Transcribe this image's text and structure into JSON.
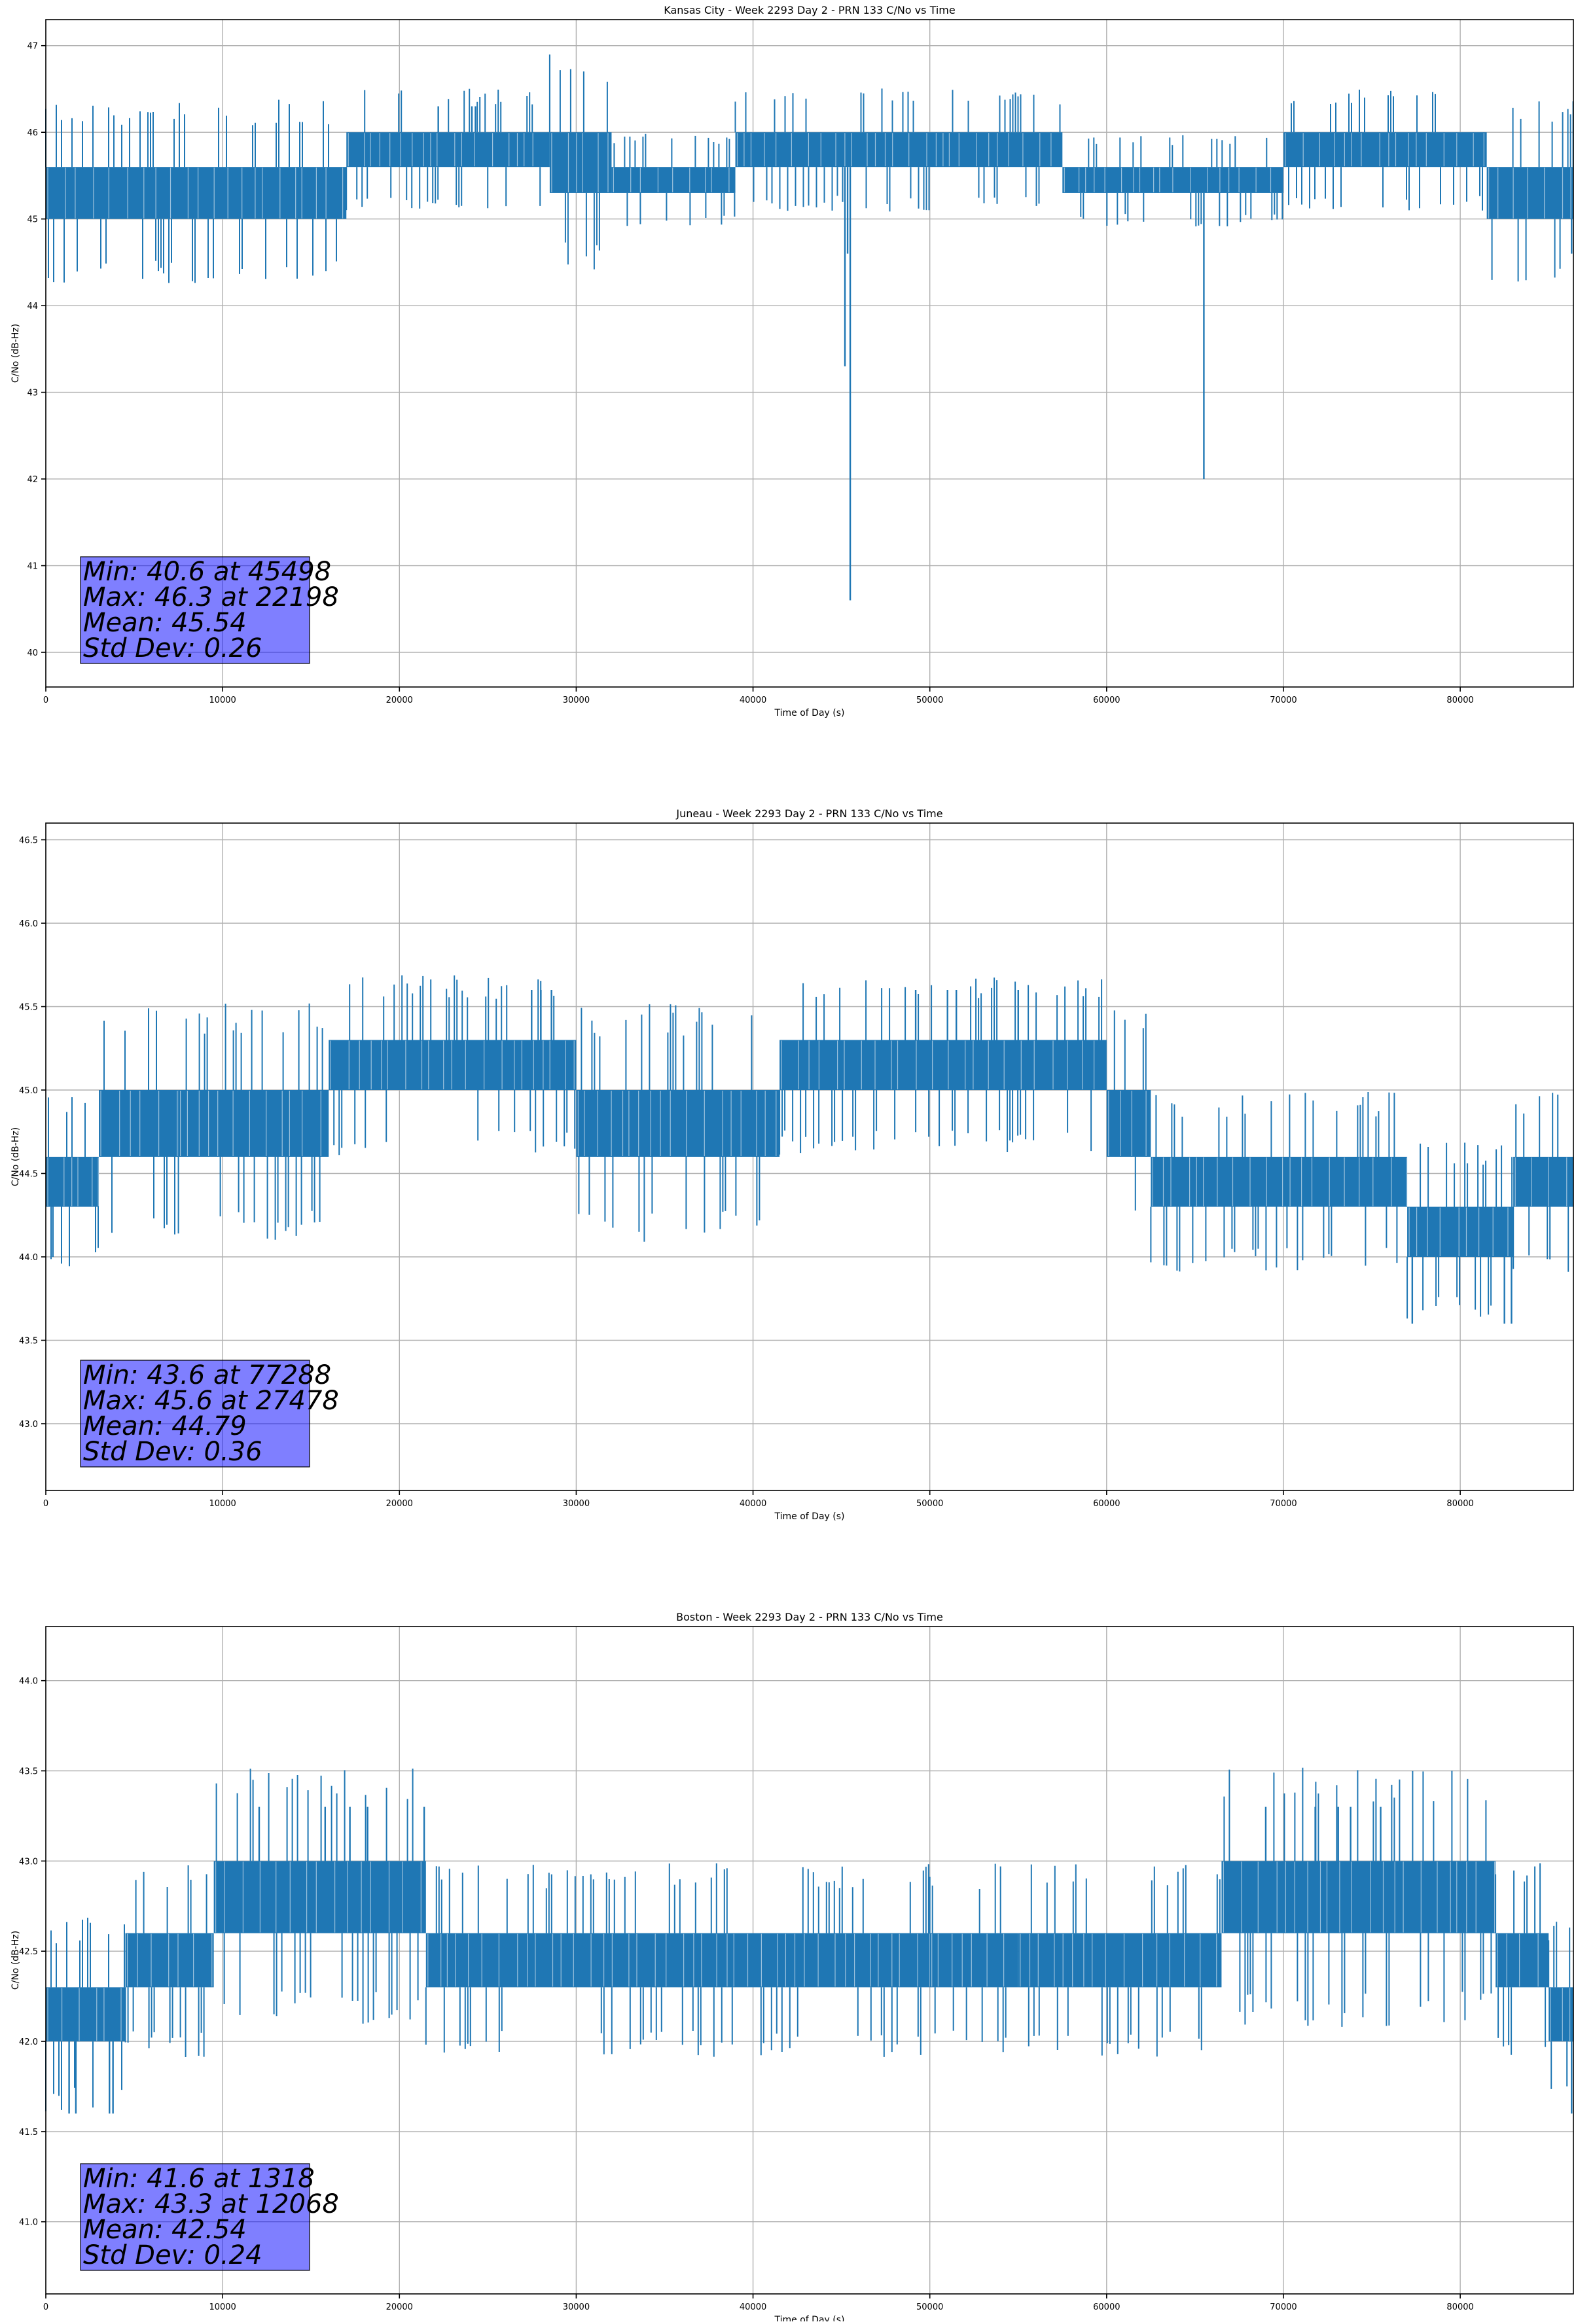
{
  "chart_data": [
    {
      "type": "line",
      "title": "Kansas City - Week 2293 Day 2 - PRN 133 C/No vs Time",
      "xlabel": "Time of Day (s)",
      "ylabel": "C/No (dB-Hz)",
      "xlim": [
        0,
        86400
      ],
      "ylim": [
        39.6,
        47.3
      ],
      "xticks": [
        0,
        10000,
        20000,
        30000,
        40000,
        50000,
        60000,
        70000,
        80000
      ],
      "xtick_labels": [
        "0",
        "10000",
        "20000",
        "30000",
        "40000",
        "50000",
        "60000",
        "70000",
        "80000"
      ],
      "yticks": [
        40,
        41,
        42,
        43,
        44,
        45,
        46,
        47
      ],
      "ytick_labels": [
        "40",
        "41",
        "42",
        "43",
        "44",
        "45",
        "46",
        "47"
      ],
      "grid": true,
      "series_color": "#1f77b4",
      "band_segments": [
        {
          "x0": 0,
          "x1": 17000,
          "low": 45.0,
          "high": 45.6
        },
        {
          "x0": 17000,
          "x1": 28500,
          "low": 45.6,
          "high": 46.0
        },
        {
          "x0": 28500,
          "x1": 32000,
          "low": 45.3,
          "high": 46.0
        },
        {
          "x0": 32000,
          "x1": 39000,
          "low": 45.3,
          "high": 45.6
        },
        {
          "x0": 39000,
          "x1": 57500,
          "low": 45.6,
          "high": 46.0
        },
        {
          "x0": 57500,
          "x1": 70000,
          "low": 45.3,
          "high": 45.6
        },
        {
          "x0": 70000,
          "x1": 81500,
          "low": 45.6,
          "high": 46.0
        },
        {
          "x0": 81500,
          "x1": 86400,
          "low": 45.0,
          "high": 45.6
        }
      ],
      "spikes": [
        {
          "x": 22198,
          "y": 46.3
        },
        {
          "x": 24100,
          "y": 46.3
        },
        {
          "x": 24300,
          "y": 46.3
        },
        {
          "x": 45200,
          "y": 43.3
        },
        {
          "x": 45350,
          "y": 44.6
        },
        {
          "x": 45498,
          "y": 40.6
        },
        {
          "x": 65500,
          "y": 42.0
        },
        {
          "x": 86300,
          "y": 44.6
        }
      ],
      "stats": {
        "min_line": "Min: 40.6 at 45498",
        "max_line": "Max: 46.3 at 22198",
        "mean_line": "Mean: 45.54",
        "std_line": "Std Dev: 0.26"
      }
    },
    {
      "type": "line",
      "title": "Juneau - Week 2293 Day 2 - PRN 133 C/No vs Time",
      "xlabel": "Time of Day (s)",
      "ylabel": "C/No (dB-Hz)",
      "xlim": [
        0,
        86400
      ],
      "ylim": [
        42.6,
        46.6
      ],
      "xticks": [
        0,
        10000,
        20000,
        30000,
        40000,
        50000,
        60000,
        70000,
        80000
      ],
      "xtick_labels": [
        "0",
        "10000",
        "20000",
        "30000",
        "40000",
        "50000",
        "60000",
        "70000",
        "80000"
      ],
      "yticks": [
        43.0,
        43.5,
        44.0,
        44.5,
        45.0,
        45.5,
        46.0,
        46.5
      ],
      "ytick_labels": [
        "43.0",
        "43.5",
        "44.0",
        "44.5",
        "45.0",
        "45.5",
        "46.0",
        "46.5"
      ],
      "grid": true,
      "series_color": "#1f77b4",
      "band_segments": [
        {
          "x0": 0,
          "x1": 3000,
          "low": 44.3,
          "high": 44.6
        },
        {
          "x0": 3000,
          "x1": 7500,
          "low": 44.6,
          "high": 45.0
        },
        {
          "x0": 7500,
          "x1": 16000,
          "low": 44.6,
          "high": 45.0
        },
        {
          "x0": 16000,
          "x1": 30000,
          "low": 45.0,
          "high": 45.3
        },
        {
          "x0": 30000,
          "x1": 41500,
          "low": 44.6,
          "high": 45.0
        },
        {
          "x0": 41500,
          "x1": 60000,
          "low": 45.0,
          "high": 45.3
        },
        {
          "x0": 60000,
          "x1": 62500,
          "low": 44.6,
          "high": 45.0
        },
        {
          "x0": 62500,
          "x1": 77000,
          "low": 44.3,
          "high": 44.6
        },
        {
          "x0": 77000,
          "x1": 83000,
          "low": 44.0,
          "high": 44.3
        },
        {
          "x0": 83000,
          "x1": 86400,
          "low": 44.3,
          "high": 44.6
        }
      ],
      "spikes": [
        {
          "x": 400,
          "y": 44.0
        },
        {
          "x": 27478,
          "y": 45.6
        },
        {
          "x": 28000,
          "y": 45.6
        },
        {
          "x": 28600,
          "y": 45.6
        },
        {
          "x": 49200,
          "y": 45.6
        },
        {
          "x": 51000,
          "y": 45.6
        },
        {
          "x": 51500,
          "y": 45.6
        },
        {
          "x": 55000,
          "y": 45.6
        },
        {
          "x": 77288,
          "y": 43.6
        },
        {
          "x": 82500,
          "y": 43.6
        },
        {
          "x": 82900,
          "y": 43.6
        }
      ],
      "stats": {
        "min_line": "Min: 43.6 at 77288",
        "max_line": "Max: 45.6 at 27478",
        "mean_line": "Mean: 44.79",
        "std_line": "Std Dev: 0.36"
      }
    },
    {
      "type": "line",
      "title": "Boston - Week 2293 Day 2 - PRN 133 C/No vs Time",
      "xlabel": "Time of Day (s)",
      "ylabel": "C/No (dB-Hz)",
      "xlim": [
        0,
        86400
      ],
      "ylim": [
        40.6,
        44.3
      ],
      "xticks": [
        0,
        10000,
        20000,
        30000,
        40000,
        50000,
        60000,
        70000,
        80000
      ],
      "xtick_labels": [
        "0",
        "10000",
        "20000",
        "30000",
        "40000",
        "50000",
        "60000",
        "70000",
        "80000"
      ],
      "yticks": [
        41.0,
        41.5,
        42.0,
        42.5,
        43.0,
        43.5,
        44.0
      ],
      "ytick_labels": [
        "41.0",
        "41.5",
        "42.0",
        "42.5",
        "43.0",
        "43.5",
        "44.0"
      ],
      "grid": true,
      "series_color": "#1f77b4",
      "band_segments": [
        {
          "x0": 0,
          "x1": 4500,
          "low": 42.0,
          "high": 42.3
        },
        {
          "x0": 4500,
          "x1": 9500,
          "low": 42.3,
          "high": 42.6
        },
        {
          "x0": 9500,
          "x1": 21500,
          "low": 42.6,
          "high": 43.0
        },
        {
          "x0": 21500,
          "x1": 50000,
          "low": 42.3,
          "high": 42.6
        },
        {
          "x0": 50000,
          "x1": 55000,
          "low": 42.3,
          "high": 42.6
        },
        {
          "x0": 55000,
          "x1": 66500,
          "low": 42.3,
          "high": 42.6
        },
        {
          "x0": 66500,
          "x1": 82000,
          "low": 42.6,
          "high": 43.0
        },
        {
          "x0": 82000,
          "x1": 85000,
          "low": 42.3,
          "high": 42.6
        },
        {
          "x0": 85000,
          "x1": 86400,
          "low": 42.0,
          "high": 42.3
        }
      ],
      "spikes": [
        {
          "x": 1318,
          "y": 41.6
        },
        {
          "x": 1700,
          "y": 41.6
        },
        {
          "x": 3600,
          "y": 41.6
        },
        {
          "x": 3800,
          "y": 41.6
        },
        {
          "x": 12068,
          "y": 43.3
        },
        {
          "x": 15800,
          "y": 43.3
        },
        {
          "x": 17200,
          "y": 43.3
        },
        {
          "x": 18200,
          "y": 43.3
        },
        {
          "x": 21400,
          "y": 43.3
        },
        {
          "x": 69000,
          "y": 43.3
        },
        {
          "x": 71800,
          "y": 43.3
        },
        {
          "x": 73100,
          "y": 43.3
        },
        {
          "x": 73800,
          "y": 43.3
        },
        {
          "x": 75500,
          "y": 43.3
        },
        {
          "x": 86300,
          "y": 41.6
        }
      ],
      "stats": {
        "min_line": "Min: 41.6 at 1318",
        "max_line": "Max: 43.3 at 12068",
        "mean_line": "Mean: 42.54",
        "std_line": "Std Dev: 0.24"
      }
    }
  ]
}
